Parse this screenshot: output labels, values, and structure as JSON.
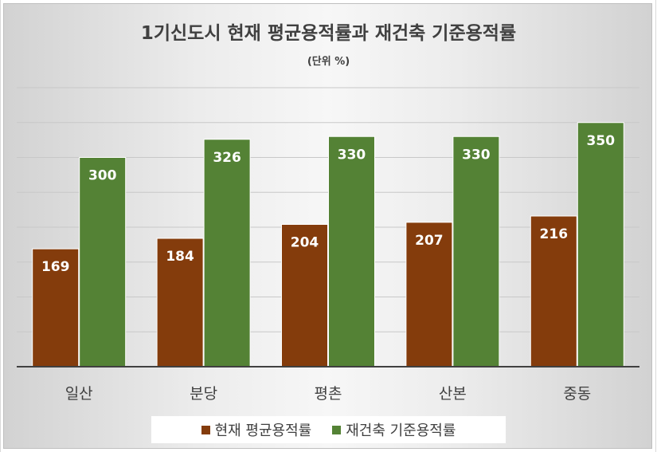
{
  "chart_data": {
    "type": "bar",
    "title": "1기신도시 현재 평균용적률과 재건축 기준용적률",
    "subtitle": "(단위 %)",
    "categories": [
      "일산",
      "분당",
      "평촌",
      "산본",
      "중동"
    ],
    "series": [
      {
        "name": "현재 평균용적률",
        "color": "#843c0c",
        "values": [
          169,
          184,
          204,
          207,
          216
        ]
      },
      {
        "name": "재건축 기준용적률",
        "color": "#548235",
        "values": [
          300,
          326,
          330,
          330,
          350
        ]
      }
    ],
    "ylim": [
      0,
      400
    ],
    "y_gridline_step": 50,
    "grid": true,
    "y_tick_labels_shown": false,
    "legend_position": "bottom"
  }
}
